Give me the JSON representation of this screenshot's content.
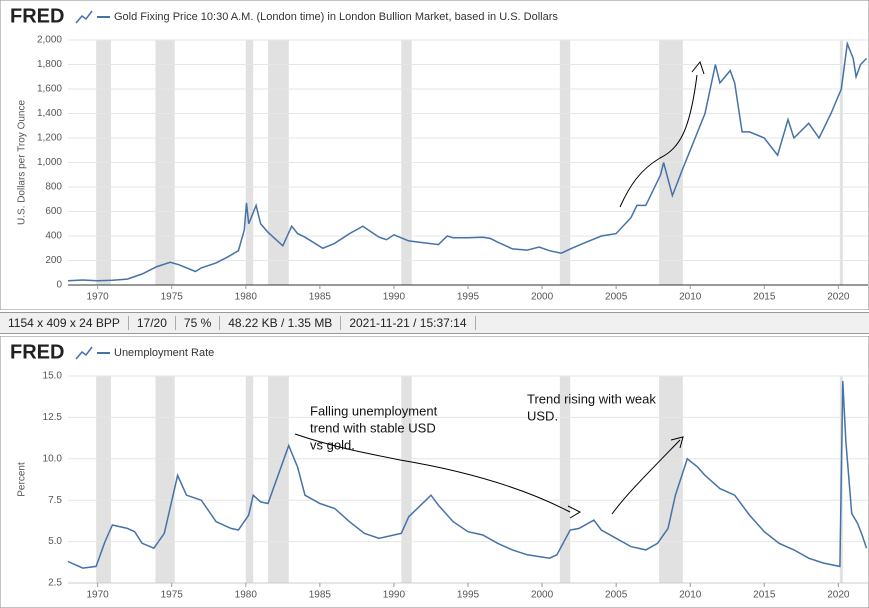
{
  "chart_data": [
    {
      "type": "line",
      "logo": "FRED",
      "title": "Gold Fixing Price 10:30 A.M. (London time) in London Bullion Market, based in U.S. Dollars",
      "y_label": "U.S. Dollars per Troy Ounce",
      "x": [
        1968.0,
        1969.0,
        1970.0,
        1971.0,
        1972.0,
        1973.0,
        1973.5,
        1974.0,
        1974.9,
        1975.5,
        1976.6,
        1977.0,
        1978.0,
        1978.8,
        1979.5,
        1979.9,
        1980.05,
        1980.2,
        1980.7,
        1981.0,
        1981.5,
        1982.5,
        1983.1,
        1983.5,
        1984.0,
        1985.2,
        1986.0,
        1987.0,
        1987.9,
        1988.5,
        1989.0,
        1989.5,
        1990.0,
        1991.0,
        1992.0,
        1993.0,
        1993.6,
        1994.0,
        1995.0,
        1996.0,
        1996.5,
        1997.0,
        1998.0,
        1999.0,
        1999.8,
        2000.5,
        2001.3,
        2002.0,
        2003.0,
        2004.0,
        2005.0,
        2006.0,
        2006.4,
        2007.0,
        2008.0,
        2008.2,
        2008.8,
        2009.5,
        2010.0,
        2010.5,
        2011.0,
        2011.7,
        2012.0,
        2012.7,
        2013.0,
        2013.5,
        2014.0,
        2015.0,
        2015.9,
        2016.6,
        2017.0,
        2018.0,
        2018.7,
        2019.5,
        2020.2,
        2020.6,
        2021.0,
        2021.2,
        2021.5,
        2021.9
      ],
      "series": [
        {
          "name": "Gold Fixing Price 10:30 A.M. (London time) in London Bullion Market, based in U.S. Dollars",
          "color": "#4572a7",
          "values": [
            35,
            41,
            35,
            39,
            48,
            90,
            120,
            150,
            185,
            165,
            110,
            140,
            180,
            230,
            280,
            450,
            670,
            500,
            650,
            500,
            430,
            320,
            480,
            420,
            390,
            300,
            340,
            420,
            480,
            430,
            390,
            370,
            410,
            360,
            345,
            330,
            400,
            385,
            385,
            390,
            380,
            350,
            295,
            285,
            310,
            280,
            260,
            300,
            350,
            400,
            420,
            550,
            650,
            650,
            900,
            1000,
            730,
            950,
            1100,
            1250,
            1400,
            1800,
            1650,
            1750,
            1650,
            1250,
            1250,
            1200,
            1060,
            1350,
            1200,
            1320,
            1200,
            1400,
            1600,
            1970,
            1850,
            1700,
            1800,
            1850
          ]
        }
      ],
      "xlim": [
        1968,
        2022
      ],
      "xticks": [
        1970,
        1975,
        1980,
        1985,
        1990,
        1995,
        2000,
        2005,
        2010,
        2015,
        2020
      ],
      "ylim": [
        0,
        2000
      ],
      "yticks": [
        0,
        200,
        400,
        600,
        800,
        {
          "value": 1000,
          "label": "1,000"
        },
        {
          "value": 1200,
          "label": "1,200"
        },
        {
          "value": 1400,
          "label": "1,400"
        },
        {
          "value": 1600,
          "label": "1,600"
        },
        {
          "value": 1800,
          "label": "1,800"
        },
        {
          "value": 2000,
          "label": "2,000"
        }
      ],
      "grid": true,
      "recessions": [
        [
          1969.9,
          1970.9
        ],
        [
          1973.9,
          1975.2
        ],
        [
          1980.0,
          1980.5
        ],
        [
          1981.5,
          1982.9
        ],
        [
          1990.5,
          1991.2
        ],
        [
          2001.2,
          2001.9
        ],
        [
          2007.9,
          2009.5
        ],
        [
          2020.1,
          2020.3
        ]
      ]
    },
    {
      "type": "line",
      "logo": "FRED",
      "title": "Unemployment Rate",
      "y_label": "Percent",
      "x": [
        1968.0,
        1968.5,
        1969.0,
        1969.9,
        1970.5,
        1971.0,
        1972.0,
        1972.5,
        1973.0,
        1973.8,
        1974.5,
        1975.4,
        1976.0,
        1977.0,
        1978.0,
        1979.0,
        1979.5,
        1980.2,
        1980.5,
        1981.0,
        1981.5,
        1982.9,
        1983.5,
        1984.0,
        1985.0,
        1986.0,
        1987.0,
        1988.0,
        1989.0,
        1990.0,
        1990.5,
        1991.0,
        1992.5,
        1993.0,
        1994.0,
        1995.0,
        1996.0,
        1997.0,
        1998.0,
        1999.0,
        2000.5,
        2001.0,
        2001.9,
        2002.5,
        2003.5,
        2004.0,
        2005.0,
        2006.0,
        2007.0,
        2007.8,
        2008.5,
        2009.0,
        2009.8,
        2010.5,
        2011.0,
        2012.0,
        2013.0,
        2014.0,
        2015.0,
        2016.0,
        2017.0,
        2018.0,
        2019.0,
        2020.1,
        2020.3,
        2020.5,
        2020.9,
        2021.3,
        2021.6,
        2021.9
      ],
      "series": [
        {
          "name": "Unemployment Rate",
          "color": "#4572a7",
          "values": [
            3.8,
            3.6,
            3.4,
            3.5,
            5.0,
            6.0,
            5.8,
            5.6,
            4.9,
            4.6,
            5.5,
            9.0,
            7.8,
            7.5,
            6.2,
            5.8,
            5.7,
            6.6,
            7.8,
            7.4,
            7.3,
            10.8,
            9.5,
            7.8,
            7.3,
            7.0,
            6.2,
            5.5,
            5.2,
            5.4,
            5.5,
            6.5,
            7.8,
            7.2,
            6.2,
            5.6,
            5.4,
            4.9,
            4.5,
            4.2,
            4.0,
            4.2,
            5.7,
            5.8,
            6.3,
            5.7,
            5.2,
            4.7,
            4.5,
            4.9,
            5.8,
            7.8,
            10.0,
            9.5,
            9.0,
            8.2,
            7.8,
            6.6,
            5.6,
            4.9,
            4.5,
            4.0,
            3.7,
            3.5,
            14.7,
            11.1,
            6.7,
            6.1,
            5.4,
            4.6
          ]
        }
      ],
      "xlim": [
        1968,
        2022
      ],
      "xticks": [
        1970,
        1975,
        1980,
        1985,
        1990,
        1995,
        2000,
        2005,
        2010,
        2015,
        2020
      ],
      "ylim": [
        2.5,
        15
      ],
      "yticks": [
        2.5,
        {
          "value": 5,
          "label": "5.0"
        },
        7.5,
        {
          "value": 10,
          "label": "10.0"
        },
        12.5,
        {
          "value": 15,
          "label": "15.0"
        }
      ],
      "grid": true,
      "recessions": [
        [
          1969.9,
          1970.9
        ],
        [
          1973.9,
          1975.2
        ],
        [
          1980.0,
          1980.5
        ],
        [
          1981.5,
          1982.9
        ],
        [
          1990.5,
          1991.2
        ],
        [
          2001.2,
          2001.9
        ],
        [
          2007.9,
          2009.5
        ],
        [
          2020.1,
          2020.3
        ]
      ],
      "annotations": [
        {
          "lines": [
            "Falling unemployment",
            "trend with stable USD",
            "vs gold."
          ]
        },
        {
          "lines": [
            "Trend rising with weak",
            "USD."
          ]
        }
      ]
    }
  ],
  "status_bar": [
    "1154 x 409 x 24 BPP",
    "17/20",
    "75 %",
    "48.22 KB / 1.35 MB",
    "2021-11-21 / 15:37:14"
  ]
}
